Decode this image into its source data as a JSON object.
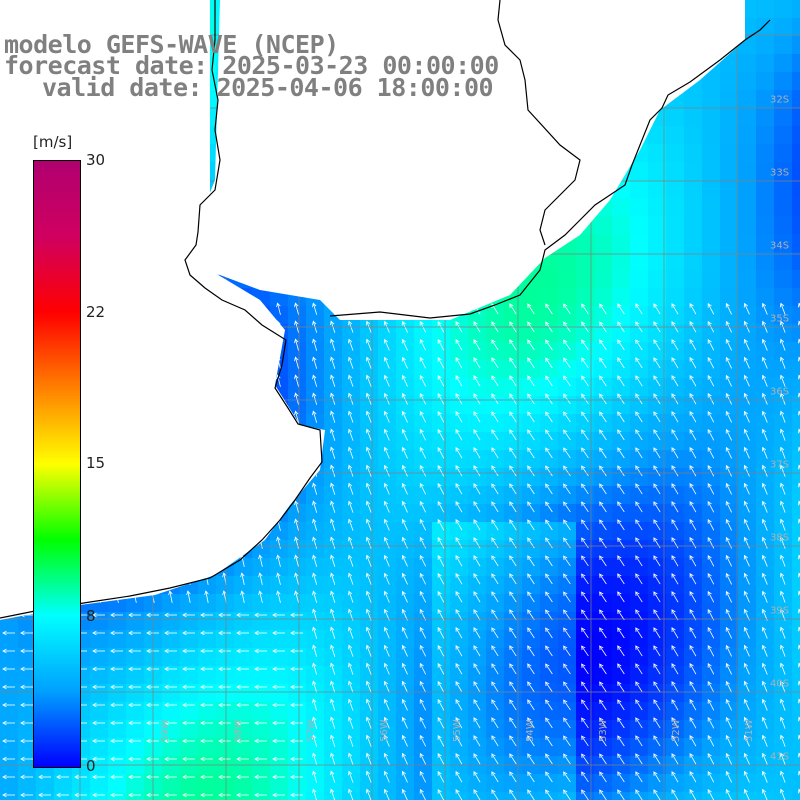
{
  "header": {
    "line1": "modelo GEFS-WAVE (NCEP)",
    "line2": "forecast date: 2025-03-23 00:00:00",
    "line3": "valid date: 2025-04-06 18:00:00"
  },
  "colorbar": {
    "unit": "[m/s]",
    "ticks": [
      "30",
      "22",
      "15",
      "8",
      "0"
    ],
    "range": [
      0,
      30
    ],
    "stops": [
      "#0000ff",
      "#00a0ff",
      "#00ffff",
      "#00ff00",
      "#ffff00",
      "#ff8000",
      "#ff0000",
      "#d00060",
      "#b00070"
    ]
  },
  "grid": {
    "lat_labels": [
      "32S",
      "33S",
      "34S",
      "35S",
      "36S",
      "37S",
      "38S",
      "39S",
      "40S",
      "41S"
    ],
    "lon_labels": [
      "59W",
      "58W",
      "57W",
      "56W",
      "55W",
      "54W",
      "53W",
      "52W",
      "51W"
    ]
  },
  "colors": {
    "land": "#ffffff",
    "coast": "#000000",
    "grid": "#808080",
    "arrow": "#ffffff",
    "title": "#808080"
  }
}
